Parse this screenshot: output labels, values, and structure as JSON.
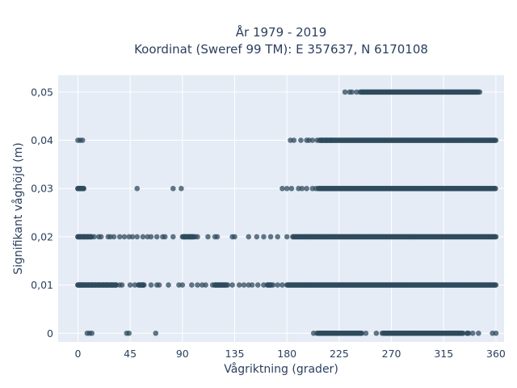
{
  "chart_data": {
    "type": "scatter",
    "title": "År 1979 - 2019",
    "subtitle": "Koordinat (Sweref 99 TM): E 357637, N 6170108",
    "xlabel": "Vågriktning (grader)",
    "ylabel": "Signifikant våghöjd (m)",
    "xlim": [
      -17,
      367
    ],
    "ylim": [
      -0.0018,
      0.0535
    ],
    "xticks": [
      0,
      45,
      90,
      135,
      180,
      225,
      270,
      315,
      360
    ],
    "yticks": [
      0,
      0.01,
      0.02,
      0.03,
      0.04,
      0.05
    ],
    "ytick_labels": [
      "0",
      "0,01",
      "0,02",
      "0,03",
      "0,04",
      "0,05"
    ],
    "grid": true,
    "background": "#e5ecf6",
    "marker_color": "#2f4b5e",
    "series": [
      {
        "x": [
          8,
          10,
          12,
          42,
          44,
          67,
          203,
          213,
          248,
          257,
          262,
          340,
          345,
          357,
          360
        ],
        "y": [
          0,
          0,
          0,
          0,
          0,
          0,
          0,
          0,
          0,
          0,
          0,
          0,
          0,
          0,
          0
        ],
        "bands": [
          [
            206,
            245
          ],
          [
            263,
            332
          ],
          [
            335,
            337
          ]
        ]
      },
      {
        "x": [
          0,
          2,
          4,
          6,
          9,
          12,
          15,
          18,
          22,
          25,
          29,
          33,
          36,
          38,
          45,
          49,
          56,
          63,
          68,
          70,
          78,
          87,
          90,
          98,
          103,
          107,
          110,
          116,
          118,
          129,
          133,
          139,
          143,
          147,
          150,
          155,
          160,
          168,
          172,
          176
        ],
        "y": [
          0.01,
          0.01,
          0.01,
          0.01,
          0.01,
          0.01,
          0.01,
          0.01,
          0.01,
          0.01,
          0.01,
          0.01,
          0.01,
          0.01,
          0.01,
          0.01,
          0.01,
          0.01,
          0.01,
          0.01,
          0.01,
          0.01,
          0.01,
          0.01,
          0.01,
          0.01,
          0.01,
          0.01,
          0.01,
          0.01,
          0.01,
          0.01,
          0.01,
          0.01,
          0.01,
          0.01,
          0.01,
          0.01,
          0.01,
          0.01
        ],
        "bands": [
          [
            0,
            33
          ],
          [
            52,
            57
          ],
          [
            118,
            128
          ],
          [
            163,
            167
          ],
          [
            180,
            360
          ]
        ]
      },
      {
        "x": [
          0,
          2,
          5,
          8,
          11,
          14,
          18,
          20,
          26,
          28,
          31,
          36,
          40,
          44,
          47,
          51,
          56,
          60,
          63,
          68,
          73,
          75,
          82,
          92,
          96,
          98,
          101,
          103,
          112,
          118,
          120,
          133,
          135,
          147,
          154,
          160,
          166,
          172,
          180
        ],
        "y": [
          0.02,
          0.02,
          0.02,
          0.02,
          0.02,
          0.02,
          0.02,
          0.02,
          0.02,
          0.02,
          0.02,
          0.02,
          0.02,
          0.02,
          0.02,
          0.02,
          0.02,
          0.02,
          0.02,
          0.02,
          0.02,
          0.02,
          0.02,
          0.02,
          0.02,
          0.02,
          0.02,
          0.02,
          0.02,
          0.02,
          0.02,
          0.02,
          0.02,
          0.02,
          0.02,
          0.02,
          0.02,
          0.02,
          0.02
        ],
        "bands": [
          [
            0,
            12
          ],
          [
            90,
            100
          ],
          [
            185,
            360
          ]
        ]
      },
      {
        "x": [
          0,
          2,
          5,
          51,
          82,
          89,
          176,
          180,
          184,
          190,
          193,
          197,
          202,
          205
        ],
        "y": [
          0.03,
          0.03,
          0.03,
          0.03,
          0.03,
          0.03,
          0.03,
          0.03,
          0.03,
          0.03,
          0.03,
          0.03,
          0.03,
          0.03
        ],
        "bands": [
          [
            0,
            5
          ],
          [
            207,
            360
          ]
        ]
      },
      {
        "x": [
          0,
          2,
          4,
          183,
          186,
          192,
          197,
          199,
          202,
          206,
          210,
          214,
          218
        ],
        "y": [
          0.04,
          0.04,
          0.04,
          0.04,
          0.04,
          0.04,
          0.04,
          0.04,
          0.04,
          0.04,
          0.04,
          0.04,
          0.04
        ],
        "bands": [
          [
            208,
            360
          ]
        ]
      },
      {
        "x": [
          230,
          234,
          236,
          240,
          243,
          346
        ],
        "y": [
          0.05,
          0.05,
          0.05,
          0.05,
          0.05,
          0.05
        ],
        "bands": [
          [
            244,
            345
          ]
        ]
      }
    ]
  }
}
